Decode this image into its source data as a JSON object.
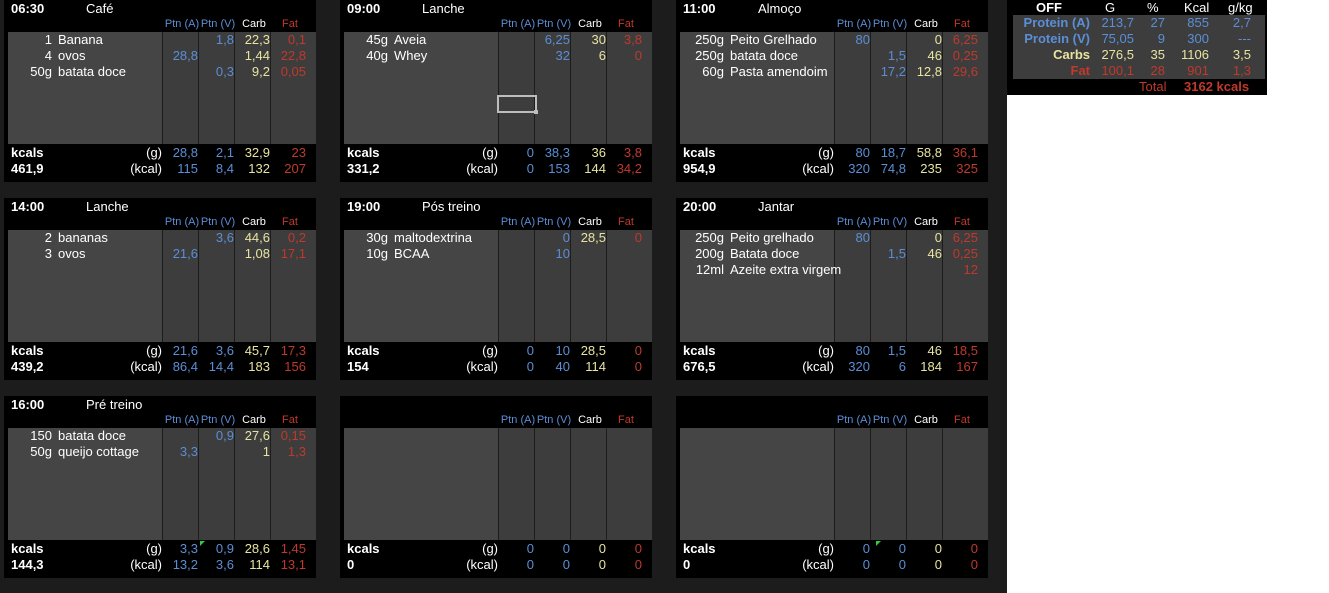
{
  "columns": {
    "ptn_a": "Ptn (A)",
    "ptn_v": "Ptn (V)",
    "carb": "Carb",
    "fat": "Fat"
  },
  "footer": {
    "kcals_label": "kcals",
    "grams_unit": "(g)",
    "kcal_unit": "(kcal)"
  },
  "meals": [
    {
      "time": "06:30",
      "name": "Café",
      "kcals": "461,9",
      "items": [
        {
          "qty": "1",
          "food": "Banana",
          "pa": "",
          "pv": "1,8",
          "carb": "22,3",
          "fat": "0,1"
        },
        {
          "qty": "4",
          "food": "ovos",
          "pa": "28,8",
          "pv": "",
          "carb": "1,44",
          "fat": "22,8"
        },
        {
          "qty": "50g",
          "food": "batata doce",
          "pa": "",
          "pv": "0,3",
          "carb": "9,2",
          "fat": "0,05"
        }
      ],
      "g": {
        "pa": "28,8",
        "pv": "2,1",
        "carb": "32,9",
        "fat": "23"
      },
      "kc": {
        "pa": "115",
        "pv": "8,4",
        "carb": "132",
        "fat": "207"
      }
    },
    {
      "time": "09:00",
      "name": "Lanche",
      "kcals": "331,2",
      "items": [
        {
          "qty": "45g",
          "food": "Aveia",
          "pa": "",
          "pv": "6,25",
          "carb": "30",
          "fat": "3,8"
        },
        {
          "qty": "40g",
          "food": "Whey",
          "pa": "",
          "pv": "32",
          "carb": "6",
          "fat": "0"
        }
      ],
      "g": {
        "pa": "0",
        "pv": "38,3",
        "carb": "36",
        "fat": "3,8"
      },
      "kc": {
        "pa": "0",
        "pv": "153",
        "carb": "144",
        "fat": "34,2"
      }
    },
    {
      "time": "11:00",
      "name": "Almoço",
      "kcals": "954,9",
      "items": [
        {
          "qty": "250g",
          "food": "Peito Grelhado",
          "pa": "80",
          "pv": "",
          "carb": "0",
          "fat": "6,25"
        },
        {
          "qty": "250g",
          "food": "batata doce",
          "pa": "",
          "pv": "1,5",
          "carb": "46",
          "fat": "0,25"
        },
        {
          "qty": "60g",
          "food": "Pasta amendoim",
          "pa": "",
          "pv": "17,2",
          "carb": "12,8",
          "fat": "29,6"
        }
      ],
      "g": {
        "pa": "80",
        "pv": "18,7",
        "carb": "58,8",
        "fat": "36,1"
      },
      "kc": {
        "pa": "320",
        "pv": "74,8",
        "carb": "235",
        "fat": "325"
      }
    },
    {
      "time": "14:00",
      "name": "Lanche",
      "kcals": "439,2",
      "items": [
        {
          "qty": "2",
          "food": "bananas",
          "pa": "",
          "pv": "3,6",
          "carb": "44,6",
          "fat": "0,2"
        },
        {
          "qty": "3",
          "food": "ovos",
          "pa": "21,6",
          "pv": "",
          "carb": "1,08",
          "fat": "17,1"
        }
      ],
      "g": {
        "pa": "21,6",
        "pv": "3,6",
        "carb": "45,7",
        "fat": "17,3"
      },
      "kc": {
        "pa": "86,4",
        "pv": "14,4",
        "carb": "183",
        "fat": "156"
      }
    },
    {
      "time": "19:00",
      "name": "Pós treino",
      "kcals": "154",
      "items": [
        {
          "qty": "30g",
          "food": "maltodextrina",
          "pa": "",
          "pv": "0",
          "carb": "28,5",
          "fat": "0"
        },
        {
          "qty": "10g",
          "food": "BCAA",
          "pa": "",
          "pv": "10",
          "carb": "",
          "fat": ""
        }
      ],
      "g": {
        "pa": "0",
        "pv": "10",
        "carb": "28,5",
        "fat": "0"
      },
      "kc": {
        "pa": "0",
        "pv": "40",
        "carb": "114",
        "fat": "0"
      }
    },
    {
      "time": "20:00",
      "name": "Jantar",
      "kcals": "676,5",
      "items": [
        {
          "qty": "250g",
          "food": "Peito grelhado",
          "pa": "80",
          "pv": "",
          "carb": "0",
          "fat": "6,25"
        },
        {
          "qty": "200g",
          "food": "Batata doce",
          "pa": "",
          "pv": "1,5",
          "carb": "46",
          "fat": "0,25"
        },
        {
          "qty": "12ml",
          "food": "Azeite extra virgem",
          "pa": "",
          "pv": "",
          "carb": "",
          "fat": "12"
        }
      ],
      "g": {
        "pa": "80",
        "pv": "1,5",
        "carb": "46",
        "fat": "18,5"
      },
      "kc": {
        "pa": "320",
        "pv": "6",
        "carb": "184",
        "fat": "167"
      }
    },
    {
      "time": "16:00",
      "name": "Pré treino",
      "kcals": "144,3",
      "items": [
        {
          "qty": "150",
          "food": "batata doce",
          "pa": "",
          "pv": "0,9",
          "carb": "27,6",
          "fat": "0,15"
        },
        {
          "qty": "50g",
          "food": "queijo cottage",
          "pa": "3,3",
          "pv": "",
          "carb": "1",
          "fat": "1,3"
        }
      ],
      "g": {
        "pa": "3,3",
        "pv": "0,9",
        "carb": "28,6",
        "fat": "1,45"
      },
      "kc": {
        "pa": "13,2",
        "pv": "3,6",
        "carb": "114",
        "fat": "13,1"
      }
    },
    {
      "time": "",
      "name": "",
      "kcals": "0",
      "items": [],
      "g": {
        "pa": "0",
        "pv": "0",
        "carb": "0",
        "fat": "0"
      },
      "kc": {
        "pa": "0",
        "pv": "0",
        "carb": "0",
        "fat": "0"
      }
    },
    {
      "time": "",
      "name": "",
      "kcals": "0",
      "items": [],
      "g": {
        "pa": "0",
        "pv": "0",
        "carb": "0",
        "fat": "0"
      },
      "kc": {
        "pa": "0",
        "pv": "0",
        "carb": "0",
        "fat": "0"
      }
    }
  ],
  "summary": {
    "headers": {
      "label": "OFF",
      "g": "G",
      "pct": "%",
      "kcal": "Kcal",
      "gkg": "g/kg"
    },
    "rows": [
      {
        "label": "Protein (A)",
        "g": "213,7",
        "pct": "27",
        "kcal": "855",
        "gkg": "2,7",
        "color": "#5b8ed6"
      },
      {
        "label": "Protein (V)",
        "g": "75,05",
        "pct": "9",
        "kcal": "300",
        "gkg": "---",
        "color": "#5b8ed6"
      },
      {
        "label": "Carbs",
        "g": "276,5",
        "pct": "35",
        "kcal": "1106",
        "gkg": "3,5",
        "color": "#e8e4a0"
      },
      {
        "label": "Fat",
        "g": "100,1",
        "pct": "28",
        "kcal": "901",
        "gkg": "1,3",
        "color": "#c0392b"
      }
    ],
    "total_label": "Total",
    "total_value": "3162 kcals"
  }
}
